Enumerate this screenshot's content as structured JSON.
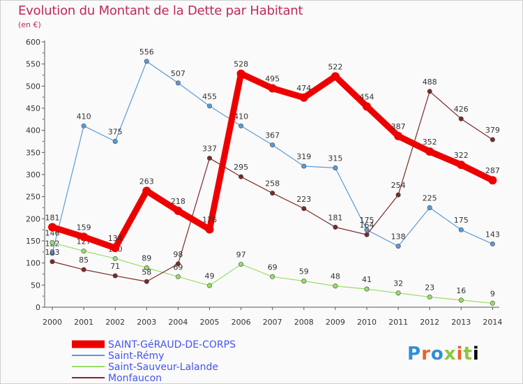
{
  "chart_data": {
    "type": "line",
    "title": "Evolution du Montant de la Dette par Habitant",
    "subtitle": "(en €)",
    "x": [
      "2000",
      "2001",
      "2002",
      "2003",
      "2004",
      "2005",
      "2006",
      "2007",
      "2008",
      "2009",
      "2010",
      "2011",
      "2012",
      "2013",
      "2014"
    ],
    "ylim": [
      0,
      600
    ],
    "yticks": [
      0,
      50,
      100,
      150,
      200,
      250,
      300,
      350,
      400,
      450,
      500,
      550,
      600
    ],
    "grid": false,
    "legend_position": "bottom-left",
    "series": [
      {
        "name": "SAINT-GéRAUD-DE-CORPS",
        "color": "#ee0000",
        "values": [
          181,
          159,
          134,
          263,
          218,
          176,
          528,
          495,
          474,
          522,
          454,
          387,
          352,
          322,
          287
        ]
      },
      {
        "name": "Saint-Rémy",
        "color": "#5b9bd5",
        "values": [
          122,
          410,
          375,
          556,
          507,
          455,
          410,
          367,
          319,
          315,
          175,
          138,
          225,
          175,
          143
        ]
      },
      {
        "name": "Saint-Sauveur-Lalande",
        "color": "#99dd66",
        "values": [
          146,
          127,
          110,
          89,
          69,
          49,
          97,
          69,
          59,
          48,
          41,
          32,
          23,
          16,
          9
        ]
      },
      {
        "name": "Monfaucon",
        "color": "#7a2a2a",
        "values": [
          103,
          85,
          71,
          58,
          98,
          337,
          295,
          258,
          223,
          181,
          164,
          254,
          488,
          426,
          379
        ]
      }
    ]
  },
  "logo": {
    "letters": [
      "P",
      "r",
      "o",
      "x",
      "i",
      "t",
      "i"
    ]
  }
}
